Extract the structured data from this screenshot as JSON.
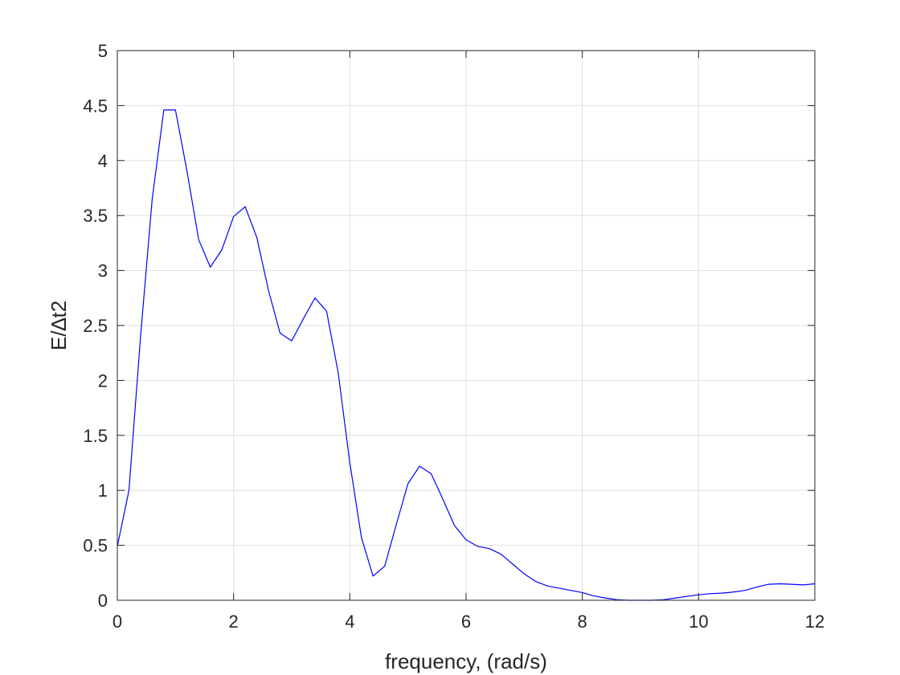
{
  "chart_data": {
    "type": "line",
    "xlabel": "frequency, (rad/s)",
    "ylabel": "E/∆t2",
    "xlim": [
      0,
      12
    ],
    "ylim": [
      0,
      5
    ],
    "xticks": [
      "0",
      "2",
      "4",
      "6",
      "8",
      "10",
      "12"
    ],
    "yticks": [
      "0",
      "0.5",
      "1",
      "1.5",
      "2",
      "2.5",
      "3",
      "3.5",
      "4",
      "4.5",
      "5"
    ],
    "grid": true,
    "series": [
      {
        "color": "#0000ff",
        "x": [
          0,
          0.2,
          0.4,
          0.6,
          0.8,
          1.0,
          1.2,
          1.4,
          1.6,
          1.8,
          2.0,
          2.2,
          2.4,
          2.6,
          2.8,
          3.0,
          3.2,
          3.4,
          3.6,
          3.8,
          4.0,
          4.2,
          4.4,
          4.6,
          4.8,
          5.0,
          5.2,
          5.4,
          5.6,
          5.8,
          6.0,
          6.2,
          6.4,
          6.6,
          6.8,
          7.0,
          7.2,
          7.4,
          7.6,
          7.8,
          8.0,
          8.2,
          8.4,
          8.6,
          8.8,
          9.0,
          9.2,
          9.4,
          9.6,
          9.8,
          10.0,
          10.2,
          10.4,
          10.6,
          10.8,
          11.0,
          11.2,
          11.4,
          11.6,
          11.8,
          12.0
        ],
        "y": [
          0.49,
          1.0,
          2.4,
          3.65,
          4.46,
          4.46,
          3.9,
          3.28,
          3.03,
          3.19,
          3.49,
          3.58,
          3.3,
          2.82,
          2.43,
          2.36,
          2.56,
          2.75,
          2.63,
          2.07,
          1.25,
          0.57,
          0.22,
          0.31,
          0.69,
          1.06,
          1.22,
          1.15,
          0.92,
          0.68,
          0.55,
          0.49,
          0.47,
          0.42,
          0.33,
          0.24,
          0.17,
          0.13,
          0.11,
          0.09,
          0.07,
          0.04,
          0.02,
          0.005,
          0.0,
          0.0,
          0.0,
          0.005,
          0.02,
          0.035,
          0.05,
          0.06,
          0.065,
          0.075,
          0.09,
          0.12,
          0.145,
          0.15,
          0.145,
          0.14,
          0.15
        ]
      }
    ]
  }
}
